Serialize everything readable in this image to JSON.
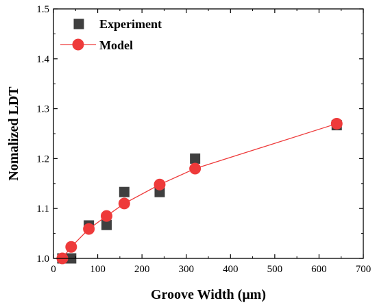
{
  "chart_data": {
    "type": "scatter",
    "xlabel": "Groove Width (μm)",
    "ylabel": "Nomalized LDT",
    "xlim": [
      0,
      700
    ],
    "ylim": [
      1.0,
      1.5
    ],
    "xticks": [
      "0",
      "100",
      "200",
      "300",
      "400",
      "500",
      "600",
      "700"
    ],
    "yticks": [
      "1.0",
      "1.1",
      "1.2",
      "1.3",
      "1.4",
      "1.5"
    ],
    "grid": false,
    "legend_position": "top-left",
    "series": [
      {
        "name": "Experiment",
        "marker": "square",
        "line": false,
        "color": "#3f3f3f",
        "x": [
          20,
          40,
          80,
          120,
          160,
          240,
          320,
          640
        ],
        "y": [
          1.0,
          1.0,
          1.066,
          1.067,
          1.133,
          1.133,
          1.2,
          1.267
        ]
      },
      {
        "name": "Model",
        "marker": "circle",
        "line": true,
        "color": "#ee3a3a",
        "x": [
          20,
          40,
          80,
          120,
          160,
          240,
          320,
          640
        ],
        "y": [
          1.0,
          1.023,
          1.059,
          1.085,
          1.11,
          1.148,
          1.18,
          1.27
        ]
      }
    ]
  }
}
